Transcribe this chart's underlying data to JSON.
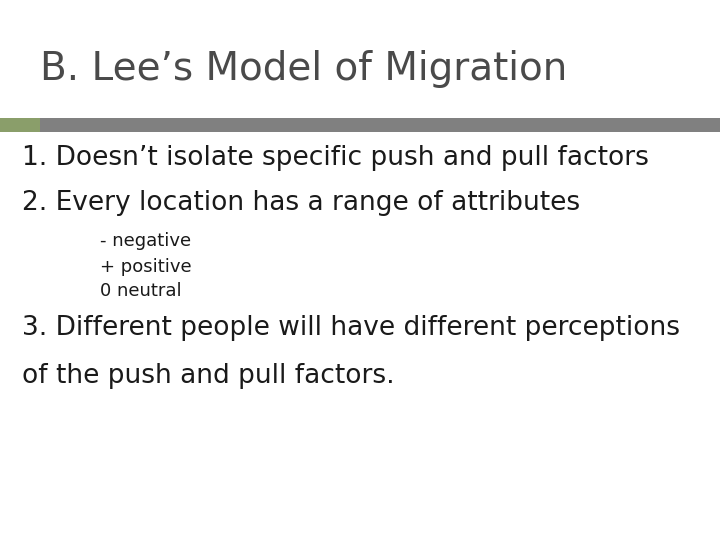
{
  "title": "B. Lee’s Model of Migration",
  "title_fontsize": 28,
  "title_color": "#4a4a4a",
  "background_color": "#ffffff",
  "bar_left_color": "#8a9e6a",
  "bar_right_color": "#808080",
  "line1": "1. Doesn’t isolate specific push and pull factors",
  "line2": "2. Every location has a range of attributes",
  "sub1": "- negative",
  "sub2": "+ positive",
  "sub3": "0 neutral",
  "line3a": "3. Different people will have different perceptions",
  "line3b": "of the push and pull factors.",
  "main_fontsize": 19,
  "sub_fontsize": 13,
  "main_color": "#1a1a1a",
  "sub_color": "#1a1a1a"
}
